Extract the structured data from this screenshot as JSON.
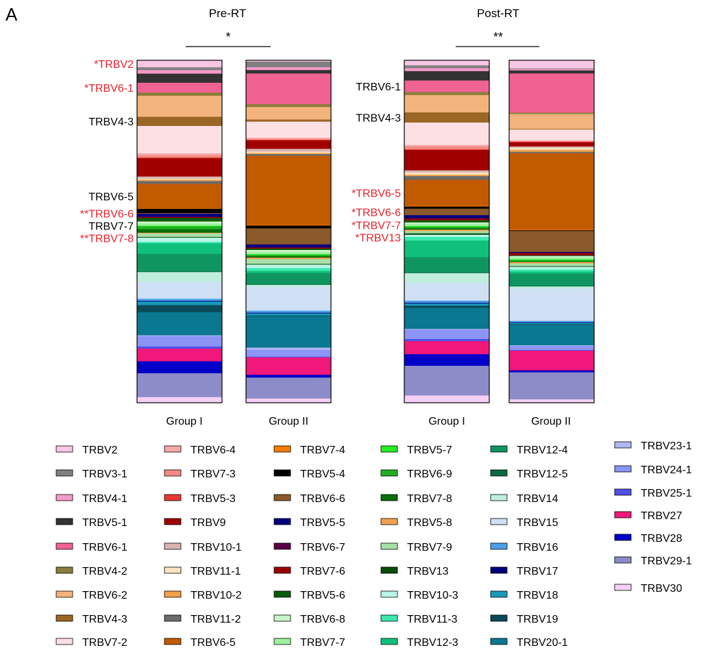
{
  "panel_letter": "A",
  "chart_data": {
    "type": "bar",
    "stacked": true,
    "normalized": true,
    "groups": [
      {
        "label": "Pre-RT",
        "significance": "*",
        "bar_labels": [
          "Group I",
          "Group II"
        ]
      },
      {
        "label": "Post-RT",
        "significance": "**",
        "bar_labels": [
          "Group I",
          "Group II"
        ]
      }
    ],
    "annotations": {
      "pre_left": [
        {
          "text": "*TRBV2",
          "segment": "TRBV2",
          "color": "#e8202a"
        },
        {
          "text": "*TRBV6-1",
          "segment": "TRBV6-1",
          "color": "#e8202a"
        },
        {
          "text": "TRBV4-3",
          "segment": "TRBV4-3",
          "color": "#000000"
        },
        {
          "text": "TRBV6-5",
          "segment": "TRBV6-5",
          "color": "#000000"
        },
        {
          "text": "**TRBV6-6",
          "segment": "TRBV6-6",
          "color": "#e8202a"
        },
        {
          "text": "TRBV7-7",
          "segment": "TRBV7-7",
          "color": "#000000"
        },
        {
          "text": "**TRBV7-8",
          "segment": "TRBV7-8",
          "color": "#e8202a"
        }
      ],
      "post_left": [
        {
          "text": "TRBV6-1",
          "segment": "TRBV6-1",
          "color": "#000000"
        },
        {
          "text": "TRBV4-3",
          "segment": "TRBV4-3",
          "color": "#000000"
        },
        {
          "text": "*TRBV6-5",
          "segment": "TRBV6-5",
          "color": "#e8202a"
        },
        {
          "text": "*TRBV6-6",
          "segment": "TRBV6-6",
          "color": "#e8202a"
        },
        {
          "text": "*TRBV7-7",
          "segment": "TRBV7-7",
          "color": "#e8202a"
        },
        {
          "text": "*TRBV13",
          "segment": "TRBV13",
          "color": "#e8202a"
        }
      ]
    },
    "legend_columns": [
      [
        "TRBV2",
        "TRBV3-1",
        "TRBV4-1",
        "TRBV5-1",
        "TRBV6-1",
        "TRBV4-2",
        "TRBV6-2",
        "TRBV4-3",
        "TRBV7-2"
      ],
      [
        "TRBV6-4",
        "TRBV7-3",
        "TRBV5-3",
        "TRBV9",
        "TRBV10-1",
        "TRBV11-1",
        "TRBV10-2",
        "TRBV11-2",
        "TRBV6-5"
      ],
      [
        "TRBV7-4",
        "TRBV5-4",
        "TRBV6-6",
        "TRBV5-5",
        "TRBV6-7",
        "TRBV7-6",
        "TRBV5-6",
        "TRBV6-8",
        "TRBV7-7"
      ],
      [
        "TRBV5-7",
        "TRBV6-9",
        "TRBV7-8",
        "TRBV5-8",
        "TRBV7-9",
        "TRBV13",
        "TRBV10-3",
        "TRBV11-3",
        "TRBV12-3"
      ],
      [
        "TRBV12-4",
        "TRBV12-5",
        "TRBV14",
        "TRBV15",
        "TRBV16",
        "TRBV17",
        "TRBV18",
        "TRBV19",
        "TRBV20-1"
      ],
      [
        "TRBV23-1",
        "TRBV24-1",
        "TRBV25-1",
        "TRBV27",
        "TRBV28",
        "TRBV29-1",
        "TRBV30"
      ]
    ],
    "categories": [
      "TRBV2",
      "TRBV3-1",
      "TRBV4-1",
      "TRBV5-1",
      "TRBV6-1",
      "TRBV4-2",
      "TRBV6-2",
      "TRBV4-3",
      "TRBV7-2",
      "TRBV6-4",
      "TRBV7-3",
      "TRBV5-3",
      "TRBV9",
      "TRBV10-1",
      "TRBV11-1",
      "TRBV10-2",
      "TRBV11-2",
      "TRBV6-5",
      "TRBV7-4",
      "TRBV5-4",
      "TRBV6-6",
      "TRBV5-5",
      "TRBV6-7",
      "TRBV7-6",
      "TRBV5-6",
      "TRBV6-8",
      "TRBV7-7",
      "TRBV5-7",
      "TRBV6-9",
      "TRBV7-8",
      "TRBV5-8",
      "TRBV7-9",
      "TRBV13",
      "TRBV10-3",
      "TRBV11-3",
      "TRBV12-3",
      "TRBV12-4",
      "TRBV12-5",
      "TRBV14",
      "TRBV15",
      "TRBV16",
      "TRBV17",
      "TRBV18",
      "TRBV19",
      "TRBV20-1",
      "TRBV23-1",
      "TRBV24-1",
      "TRBV25-1",
      "TRBV27",
      "TRBV28",
      "TRBV29-1",
      "TRBV30"
    ],
    "colors": [
      "#f9c6e4",
      "#808080",
      "#f59ac8",
      "#333333",
      "#f06292",
      "#8b7d3a",
      "#f2b37c",
      "#9a6624",
      "#fde0e4",
      "#f7a8a8",
      "#f28b82",
      "#e53935",
      "#a00000",
      "#d8b4b0",
      "#fde3c0",
      "#f5a04a",
      "#6b6b6b",
      "#c25a00",
      "#f57c00",
      "#000000",
      "#8b5a2b",
      "#000080",
      "#5a0045",
      "#9b0000",
      "#0b5a0b",
      "#c8f5c8",
      "#9ef09e",
      "#22ee22",
      "#20b020",
      "#0a6e0a",
      "#f5a050",
      "#a8e0a8",
      "#0a4a0a",
      "#b8f5e6",
      "#3ce8b0",
      "#10c07a",
      "#0f9660",
      "#0a6a40",
      "#bfeedd",
      "#cfe0f5",
      "#4da0e8",
      "#00007a",
      "#1a9ab8",
      "#0a4a5a",
      "#0a7890",
      "#b0b8f0",
      "#8c94f5",
      "#5050e8",
      "#f0187a",
      "#0000c8",
      "#8c8cc8",
      "#f5d0f5"
    ],
    "series": [
      {
        "name": "Pre-RT Group I",
        "values": [
          2.0,
          0.8,
          1.0,
          2.6,
          2.8,
          0.9,
          6.0,
          2.6,
          7.8,
          0.6,
          0.6,
          0.2,
          5.2,
          0.6,
          0.3,
          0.4,
          0.8,
          7.0,
          0.1,
          1.2,
          0.2,
          0.8,
          0.2,
          0.2,
          1.0,
          0.6,
          0.6,
          0.2,
          0.8,
          1.0,
          0.2,
          1.0,
          0.2,
          1.2,
          0.4,
          3.0,
          5.0,
          0.2,
          2.8,
          4.8,
          0.6,
          0.2,
          1.0,
          2.0,
          6.6,
          0.2,
          3.0,
          0.6,
          3.6,
          3.4,
          6.8,
          1.6
        ]
      },
      {
        "name": "Pre-RT Group II",
        "values": [
          0.4,
          1.6,
          0.8,
          1.0,
          8.8,
          0.8,
          3.6,
          0.6,
          4.6,
          0.4,
          0.2,
          0.2,
          2.4,
          0.8,
          0.4,
          0.3,
          0.5,
          19.8,
          0.2,
          0.8,
          4.6,
          0.8,
          0.2,
          0.2,
          0.4,
          0.6,
          0.6,
          0.2,
          0.4,
          0.4,
          0.4,
          1.4,
          0.2,
          1.0,
          0.8,
          0.6,
          3.2,
          0.2,
          0.6,
          6.8,
          0.6,
          0.2,
          0.6,
          0.2,
          9.0,
          0.6,
          2.0,
          0.2,
          5.0,
          0.8,
          6.0,
          1.2
        ]
      },
      {
        "name": "Post-RT Group I",
        "values": [
          1.4,
          0.8,
          0.8,
          2.6,
          3.2,
          0.8,
          4.8,
          2.8,
          6.2,
          0.4,
          0.8,
          0.2,
          5.6,
          0.6,
          0.6,
          0.4,
          1.0,
          7.2,
          0.2,
          0.6,
          1.8,
          0.8,
          0.2,
          0.4,
          0.6,
          0.4,
          0.6,
          0.2,
          0.4,
          0.4,
          0.4,
          0.6,
          0.4,
          0.6,
          1.0,
          4.6,
          4.2,
          0.2,
          2.8,
          4.8,
          0.6,
          0.2,
          0.6,
          0.6,
          5.8,
          0.2,
          2.6,
          0.6,
          3.6,
          3.2,
          8.2,
          2.0
        ]
      },
      {
        "name": "Post-RT Group II",
        "values": [
          2.4,
          0.2,
          0.4,
          0.9,
          11.6,
          0.4,
          4.4,
          0.2,
          3.2,
          0.2,
          0.2,
          0.2,
          1.2,
          0.4,
          0.6,
          0.6,
          0.4,
          22.6,
          0.2,
          0.2,
          6.2,
          0.2,
          0.2,
          0.6,
          0.2,
          0.4,
          0.6,
          0.2,
          0.4,
          0.2,
          0.4,
          0.8,
          0.2,
          0.8,
          0.6,
          0.6,
          3.6,
          0.2,
          0.6,
          9.6,
          0.4,
          0.2,
          0.4,
          0.2,
          6.0,
          0.2,
          1.2,
          0.2,
          5.8,
          0.6,
          8.0,
          1.0
        ]
      }
    ]
  }
}
